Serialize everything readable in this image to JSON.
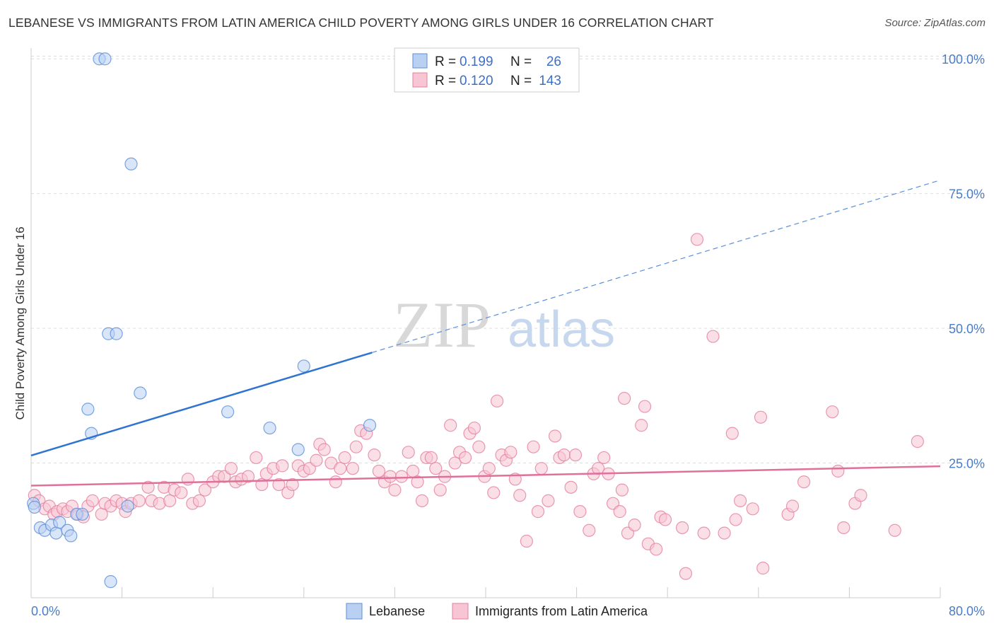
{
  "title": "LEBANESE VS IMMIGRANTS FROM LATIN AMERICA CHILD POVERTY AMONG GIRLS UNDER 16 CORRELATION CHART",
  "source": "Source: ZipAtlas.com",
  "watermark": {
    "zip": "ZIP",
    "atlas": "atlas"
  },
  "colors": {
    "lebanese": "#5b8fd9",
    "lebanese_fill": "#b9d0f2",
    "latin": "#e5809f",
    "latin_fill": "#f7c5d4",
    "axis_text": "#4a7cc7"
  },
  "legend": {
    "r_label": "R =",
    "n_label": "N =",
    "rows": [
      {
        "series": "Lebanese",
        "r": "0.199",
        "n": "26"
      },
      {
        "series": "Immigrants from Latin America",
        "r": "0.120",
        "n": "143"
      }
    ]
  },
  "chart_data": {
    "type": "scatter",
    "title": "LEBANESE VS IMMIGRANTS FROM LATIN AMERICA CHILD POVERTY AMONG GIRLS UNDER 16 CORRELATION CHART",
    "xlabel": "",
    "ylabel": "Child Poverty Among Girls Under 16",
    "xlim": [
      0,
      80
    ],
    "ylim": [
      0,
      102
    ],
    "x_tick_labels": [
      "0.0%",
      "80.0%"
    ],
    "y_tick_labels": [
      "25.0%",
      "50.0%",
      "75.0%",
      "100.0%"
    ],
    "y_ticks": [
      25,
      50,
      75,
      100
    ],
    "grid": true,
    "legend_position": "bottom",
    "series": [
      {
        "name": "Lebanese",
        "trendline": {
          "x0": 0,
          "y0": 26.4,
          "x1": 30,
          "y1": 45.5,
          "dashed_to_x": 80,
          "dashed_to_y": 77.5
        },
        "points": [
          [
            0.2,
            17.5
          ],
          [
            0.8,
            13
          ],
          [
            1.2,
            12.5
          ],
          [
            1.8,
            13.5
          ],
          [
            2.2,
            12
          ],
          [
            2.5,
            14
          ],
          [
            3.2,
            12.5
          ],
          [
            3.5,
            11.5
          ],
          [
            4.0,
            15.5
          ],
          [
            4.5,
            15.5
          ],
          [
            5.0,
            35
          ],
          [
            5.3,
            30.5
          ],
          [
            6.0,
            100
          ],
          [
            6.5,
            100
          ],
          [
            6.8,
            49
          ],
          [
            7.0,
            3
          ],
          [
            7.5,
            49
          ],
          [
            8.5,
            17
          ],
          [
            8.8,
            80.5
          ],
          [
            9.6,
            38
          ],
          [
            17.3,
            34.5
          ],
          [
            21,
            31.5
          ],
          [
            23.5,
            27.5
          ],
          [
            24,
            43
          ],
          [
            29.8,
            32
          ],
          [
            0.3,
            16.8
          ]
        ]
      },
      {
        "name": "Immigrants from Latin America",
        "trendline": {
          "x0": 0,
          "y0": 20.8,
          "x1": 80,
          "y1": 24.4
        },
        "points": [
          [
            0.3,
            19
          ],
          [
            0.7,
            18
          ],
          [
            1.2,
            16.5
          ],
          [
            1.6,
            17
          ],
          [
            2.0,
            15.5
          ],
          [
            2.3,
            16
          ],
          [
            2.8,
            16.5
          ],
          [
            3.2,
            16
          ],
          [
            3.6,
            17
          ],
          [
            4.1,
            15.5
          ],
          [
            4.6,
            15
          ],
          [
            5.0,
            17
          ],
          [
            5.4,
            18
          ],
          [
            6.2,
            15.5
          ],
          [
            6.5,
            17.5
          ],
          [
            7.0,
            17
          ],
          [
            7.5,
            18
          ],
          [
            8.0,
            17.5
          ],
          [
            8.3,
            16
          ],
          [
            8.8,
            17.5
          ],
          [
            9.5,
            18
          ],
          [
            10.3,
            20.5
          ],
          [
            10.6,
            18
          ],
          [
            11.3,
            17.5
          ],
          [
            11.7,
            20.5
          ],
          [
            12.2,
            18
          ],
          [
            12.6,
            20
          ],
          [
            13.2,
            19.5
          ],
          [
            13.8,
            22
          ],
          [
            14.2,
            17.5
          ],
          [
            14.8,
            18
          ],
          [
            15.3,
            20
          ],
          [
            16.0,
            21.5
          ],
          [
            16.5,
            22.5
          ],
          [
            17.0,
            22.5
          ],
          [
            17.6,
            24
          ],
          [
            18.0,
            21.5
          ],
          [
            18.5,
            22
          ],
          [
            19.1,
            22.5
          ],
          [
            19.8,
            26
          ],
          [
            20.3,
            21
          ],
          [
            20.7,
            23
          ],
          [
            21.3,
            24
          ],
          [
            21.8,
            21
          ],
          [
            22.1,
            24.5
          ],
          [
            22.6,
            19.5
          ],
          [
            23.0,
            21
          ],
          [
            23.5,
            24.5
          ],
          [
            24.0,
            23.5
          ],
          [
            24.5,
            24
          ],
          [
            25.1,
            25.5
          ],
          [
            25.4,
            28.5
          ],
          [
            25.8,
            27.5
          ],
          [
            26.4,
            25
          ],
          [
            26.8,
            21.5
          ],
          [
            27.2,
            24
          ],
          [
            27.6,
            26
          ],
          [
            28.3,
            24
          ],
          [
            28.6,
            28
          ],
          [
            29.0,
            31
          ],
          [
            29.5,
            30.5
          ],
          [
            30.2,
            26.5
          ],
          [
            30.6,
            23.5
          ],
          [
            31.1,
            21.5
          ],
          [
            31.6,
            22.5
          ],
          [
            32.0,
            20
          ],
          [
            32.6,
            22.5
          ],
          [
            33.2,
            27
          ],
          [
            33.6,
            23.5
          ],
          [
            34.0,
            21.5
          ],
          [
            34.4,
            18
          ],
          [
            34.8,
            26
          ],
          [
            35.2,
            26
          ],
          [
            35.6,
            24
          ],
          [
            36.0,
            20
          ],
          [
            36.4,
            22.5
          ],
          [
            36.9,
            32
          ],
          [
            37.3,
            25
          ],
          [
            37.7,
            27
          ],
          [
            38.2,
            26
          ],
          [
            38.6,
            30.5
          ],
          [
            39.0,
            31.5
          ],
          [
            39.4,
            28
          ],
          [
            39.9,
            22.5
          ],
          [
            40.3,
            24
          ],
          [
            40.7,
            19.5
          ],
          [
            41.0,
            36.5
          ],
          [
            41.4,
            26.5
          ],
          [
            41.8,
            25.5
          ],
          [
            42.2,
            27
          ],
          [
            42.6,
            22
          ],
          [
            43.0,
            19
          ],
          [
            43.6,
            10.5
          ],
          [
            44.2,
            28
          ],
          [
            44.6,
            16
          ],
          [
            44.9,
            24
          ],
          [
            45.5,
            18
          ],
          [
            46.1,
            30
          ],
          [
            46.5,
            26
          ],
          [
            46.9,
            26.5
          ],
          [
            47.5,
            20.5
          ],
          [
            47.9,
            26.5
          ],
          [
            48.3,
            16
          ],
          [
            49.1,
            12.5
          ],
          [
            49.5,
            23
          ],
          [
            49.9,
            24
          ],
          [
            50.4,
            26
          ],
          [
            50.8,
            23
          ],
          [
            51.2,
            17.5
          ],
          [
            51.8,
            16
          ],
          [
            52.2,
            37
          ],
          [
            52.5,
            12
          ],
          [
            53.1,
            13.5
          ],
          [
            53.7,
            32
          ],
          [
            54.0,
            35.5
          ],
          [
            54.3,
            10
          ],
          [
            55.0,
            9
          ],
          [
            55.4,
            15
          ],
          [
            55.8,
            14.5
          ],
          [
            57.3,
            13
          ],
          [
            57.6,
            4.5
          ],
          [
            58.6,
            66.5
          ],
          [
            59.2,
            12
          ],
          [
            60.0,
            48.5
          ],
          [
            61.0,
            12
          ],
          [
            61.7,
            30.5
          ],
          [
            62.0,
            14.5
          ],
          [
            62.4,
            18
          ],
          [
            63.5,
            16.5
          ],
          [
            64.2,
            33.5
          ],
          [
            64.4,
            5.5
          ],
          [
            66.6,
            15.5
          ],
          [
            67.0,
            17
          ],
          [
            68.0,
            21.5
          ],
          [
            70.5,
            34.5
          ],
          [
            71.0,
            23.5
          ],
          [
            71.5,
            13
          ],
          [
            72.5,
            17.5
          ],
          [
            73.0,
            19
          ],
          [
            76.0,
            12.5
          ],
          [
            78.0,
            29
          ],
          [
            52.0,
            20
          ]
        ]
      }
    ]
  },
  "bottom_legend": [
    "Lebanese",
    "Immigrants from Latin America"
  ]
}
